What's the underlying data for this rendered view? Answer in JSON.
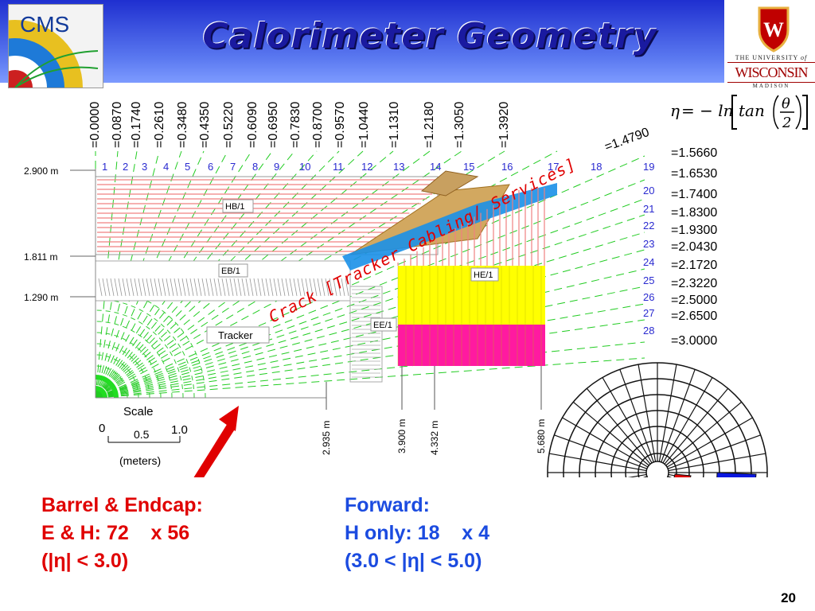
{
  "title": "Calorimeter Geometry",
  "logos": {
    "cms": "CMS",
    "uw_top": "THE UNIVERSITY",
    "uw_of": "of",
    "uw_main": "WISCONSIN",
    "uw_sub": "MADISON",
    "uw_crest_letter": "W"
  },
  "formula": {
    "lhs": "η",
    "rhs": "= − ln",
    "tan": "tan",
    "theta": "θ",
    "two": "2"
  },
  "eta_top": [
    "=0.0000",
    "=0.0870",
    "=0.1740",
    "=0.2610",
    "=0.3480",
    "=0.4350",
    "=0.5220",
    "=0.6090",
    "=0.6950",
    "=0.7830",
    "=0.8700",
    "=0.9570",
    "=1.0440",
    "=1.1310",
    "=1.2180",
    "=1.3050",
    "=1.3920"
  ],
  "eta_diag": "=1.4790",
  "eta_right": [
    "=1.5660",
    "=1.6530",
    "=1.7400",
    "=1.8300",
    "=1.9300",
    "=2.0430",
    "=2.1720",
    "=2.3220",
    "=2.5000",
    "=2.6500",
    "=3.0000"
  ],
  "tower_numbers": [
    "1",
    "2",
    "3",
    "4",
    "5",
    "6",
    "7",
    "8",
    "9",
    "10",
    "11",
    "12",
    "13",
    "14",
    "15",
    "16",
    "17",
    "18"
  ],
  "tower_numbers_right": [
    "19",
    "20",
    "21",
    "22",
    "23",
    "24",
    "25",
    "26",
    "27",
    "28"
  ],
  "radii": [
    "2.900 m",
    "1.811 m",
    "1.290 m"
  ],
  "z_positions": [
    "2.935 m",
    "3.900 m",
    "4.332 m",
    "5.680 m"
  ],
  "regions": {
    "hb": "HB/1",
    "eb": "EB/1",
    "he": "HE/1",
    "ee": "EE/1",
    "tracker": "Tracker"
  },
  "crack_label": "Crack [Tracker Cabling/ Services]",
  "scale": {
    "title": "Scale",
    "zero": "0",
    "half": "0.5",
    "one": "1.0",
    "units": "(meters)"
  },
  "barrel_note": {
    "line1": "Barrel & Endcap:",
    "line2": "E & H: 72    x 56",
    "line3": "(|η| < 3.0)"
  },
  "forward_note": {
    "line1": "Forward:",
    "line2": "H only: 18    x 4",
    "line3": "(3.0 < |η| < 5.0)"
  },
  "page_number": "20",
  "colors": {
    "header": "#2a3fd8",
    "red_note": "#e00000",
    "blue_note": "#1b4be0",
    "he_yellow": "#ffff00",
    "he_magenta": "#ff1aa0",
    "eta_lines": "#22cc22"
  }
}
